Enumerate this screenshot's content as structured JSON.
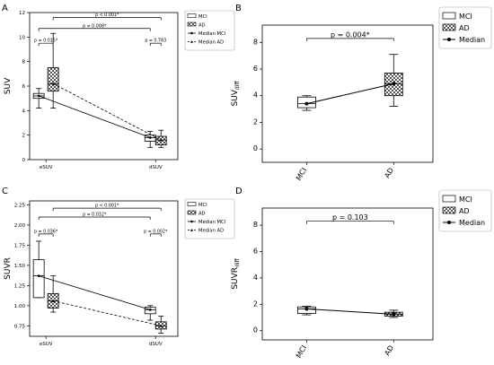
{
  "chart_data": [
    {
      "panel": "A",
      "type": "box",
      "ylabel": "SUV",
      "ylim": [
        0,
        12
      ],
      "yticks": [
        0,
        2,
        4,
        6,
        8,
        10,
        12
      ],
      "categories": [
        "eSUV",
        "dSUV"
      ],
      "groups": [
        {
          "name": "MCI",
          "pattern": "plain",
          "boxes": [
            {
              "category": "eSUV",
              "whisker_low": 4.2,
              "q1": 5.0,
              "median": 5.2,
              "q3": 5.4,
              "whisker_high": 5.8
            },
            {
              "category": "dSUV",
              "whisker_low": 1.0,
              "q1": 1.5,
              "median": 1.8,
              "q3": 2.0,
              "whisker_high": 2.3
            }
          ]
        },
        {
          "name": "AD",
          "pattern": "checker",
          "boxes": [
            {
              "category": "eSUV",
              "whisker_low": 4.2,
              "q1": 5.6,
              "median": 6.2,
              "q3": 7.5,
              "whisker_high": 10.3
            },
            {
              "category": "dSUV",
              "whisker_low": 1.0,
              "q1": 1.2,
              "median": 1.6,
              "q3": 1.9,
              "whisker_high": 2.4
            }
          ]
        }
      ],
      "median_lines": [
        {
          "name": "Median MCI",
          "style": "solid",
          "values": [
            5.2,
            1.8
          ]
        },
        {
          "name": "Median AD",
          "style": "dashed",
          "values": [
            6.2,
            1.6
          ]
        }
      ],
      "significance": [
        {
          "label": "p = 0.015*",
          "from": "MCI-eSUV",
          "to": "AD-eSUV",
          "y": 9.5
        },
        {
          "label": "p = 0.008*",
          "from": "MCI-eSUV",
          "to": "MCI-dSUV",
          "y": 10.7
        },
        {
          "label": "p < 0.001*",
          "from": "AD-eSUV",
          "to": "AD-dSUV",
          "y": 11.6
        },
        {
          "label": "p = 0.783",
          "from": "MCI-dSUV",
          "to": "AD-dSUV",
          "y": 9.5
        }
      ],
      "legend": [
        "MCI",
        "AD",
        "Median MCI",
        "Median AD"
      ],
      "legend_position": "top-right"
    },
    {
      "panel": "B",
      "type": "box",
      "ylabel": "SUVdiff",
      "ylim": [
        -1,
        9.3
      ],
      "yticks": [
        0,
        2,
        4,
        6,
        8
      ],
      "categories": [
        "MCI",
        "AD"
      ],
      "boxes": [
        {
          "category": "MCI",
          "pattern": "plain",
          "whisker_low": 2.9,
          "q1": 3.1,
          "median": 3.4,
          "q3": 3.9,
          "whisker_high": 4.0
        },
        {
          "category": "AD",
          "pattern": "checker",
          "whisker_low": 3.2,
          "q1": 4.0,
          "median": 4.9,
          "q3": 5.7,
          "whisker_high": 7.1
        }
      ],
      "median_line": {
        "name": "Median",
        "values": [
          3.4,
          4.9
        ]
      },
      "significance": [
        {
          "label": "p = 0.004*",
          "from": "MCI",
          "to": "AD",
          "y": 8.3
        }
      ],
      "legend": [
        "MCI",
        "AD",
        "Median"
      ],
      "legend_position": "top-right"
    },
    {
      "panel": "C",
      "type": "box",
      "ylabel": "SUVR",
      "ylim": [
        0.62,
        2.3
      ],
      "yticks": [
        0.75,
        1.0,
        1.25,
        1.5,
        1.75,
        2.0,
        2.25
      ],
      "categories": [
        "eSUV",
        "dSUV"
      ],
      "groups": [
        {
          "name": "MCI",
          "pattern": "plain",
          "boxes": [
            {
              "category": "eSUV",
              "whisker_low": 1.1,
              "q1": 1.1,
              "median": 1.37,
              "q3": 1.57,
              "whisker_high": 1.8
            },
            {
              "category": "dSUV",
              "whisker_low": 0.82,
              "q1": 0.9,
              "median": 0.95,
              "q3": 0.98,
              "whisker_high": 1.0
            }
          ]
        },
        {
          "name": "AD",
          "pattern": "checker",
          "boxes": [
            {
              "category": "eSUV",
              "whisker_low": 0.92,
              "q1": 0.97,
              "median": 1.06,
              "q3": 1.15,
              "whisker_high": 1.37
            },
            {
              "category": "dSUV",
              "whisker_low": 0.66,
              "q1": 0.71,
              "median": 0.75,
              "q3": 0.8,
              "whisker_high": 0.87
            }
          ]
        }
      ],
      "median_lines": [
        {
          "name": "Median MCI",
          "style": "solid",
          "values": [
            1.37,
            0.95
          ]
        },
        {
          "name": "Median AD",
          "style": "dashed",
          "values": [
            1.06,
            0.75
          ]
        }
      ],
      "significance": [
        {
          "label": "p = 0.036*",
          "from": "MCI-eSUV",
          "to": "AD-eSUV",
          "y": 1.89
        },
        {
          "label": "p = 0.032*",
          "from": "MCI-eSUV",
          "to": "MCI-dSUV",
          "y": 2.1
        },
        {
          "label": "p < 0.001*",
          "from": "AD-eSUV",
          "to": "AD-dSUV",
          "y": 2.21
        },
        {
          "label": "p = 0.002*",
          "from": "MCI-dSUV",
          "to": "AD-dSUV",
          "y": 1.89
        }
      ],
      "legend": [
        "MCI",
        "AD",
        "Median MCI",
        "Median AD"
      ],
      "legend_position": "top-right"
    },
    {
      "panel": "D",
      "type": "box",
      "ylabel": "SUVRdiff",
      "ylim": [
        -0.7,
        9.3
      ],
      "yticks": [
        0,
        2,
        4,
        6,
        8
      ],
      "categories": [
        "MCI",
        "AD"
      ],
      "boxes": [
        {
          "category": "MCI",
          "pattern": "plain",
          "whisker_low": 1.2,
          "q1": 1.3,
          "median": 1.65,
          "q3": 1.8,
          "whisker_high": 1.85
        },
        {
          "category": "AD",
          "pattern": "checker",
          "whisker_low": 1.0,
          "q1": 1.1,
          "median": 1.25,
          "q3": 1.4,
          "whisker_high": 1.55
        }
      ],
      "median_line": {
        "name": "Median",
        "values": [
          1.65,
          1.25
        ]
      },
      "significance": [
        {
          "label": "p = 0.103",
          "from": "MCI",
          "to": "AD",
          "y": 8.3
        }
      ],
      "legend": [
        "MCI",
        "AD",
        "Median"
      ],
      "legend_position": "top-right"
    }
  ]
}
